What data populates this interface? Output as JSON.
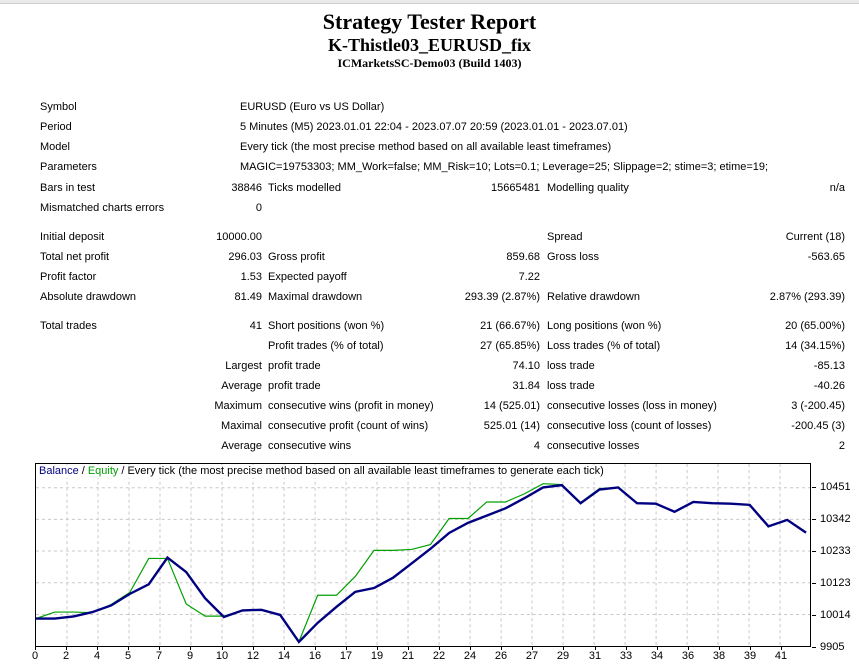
{
  "header": {
    "title": "Strategy Tester Report",
    "strategy": "K-Thistle03_EURUSD_fix",
    "server": "ICMarketsSC-Demo03 (Build 1403)"
  },
  "info": {
    "rows": [
      {
        "label": "Symbol",
        "value": "EURUSD (Euro vs US Dollar)"
      },
      {
        "label": "Period",
        "value": "5 Minutes (M5) 2023.01.01 22:04 - 2023.07.07 20:59 (2023.01.01 - 2023.07.01)"
      },
      {
        "label": "Model",
        "value": "Every tick (the most precise method based on all available least timeframes)"
      },
      {
        "label": "Parameters",
        "value": "MAGIC=19753303; MM_Work=false; MM_Risk=10; Lots=0.1; Leverage=25; Slippage=2; stime=3; etime=19;"
      }
    ]
  },
  "stats": {
    "sections": [
      {
        "rows": [
          [
            "Bars in test",
            "38846",
            "Ticks modelled",
            "15665481",
            "Modelling quality",
            "n/a"
          ],
          [
            "Mismatched charts errors",
            "0",
            "",
            "",
            "",
            ""
          ]
        ]
      },
      {
        "rows": [
          [
            "Initial deposit",
            "10000.00",
            "",
            "",
            "Spread",
            "Current (18)"
          ],
          [
            "Total net profit",
            "296.03",
            "Gross profit",
            "859.68",
            "Gross loss",
            "-563.65"
          ],
          [
            "Profit factor",
            "1.53",
            "Expected payoff",
            "7.22",
            "",
            ""
          ],
          [
            "Absolute drawdown",
            "81.49",
            "Maximal drawdown",
            "293.39 (2.87%)",
            "Relative drawdown",
            "2.87% (293.39)"
          ]
        ]
      },
      {
        "rows": [
          [
            "Total trades",
            "41",
            "Short positions (won %)",
            "21 (66.67%)",
            "Long positions (won %)",
            "20 (65.00%)"
          ],
          [
            "",
            "",
            "Profit trades (% of total)",
            "27 (65.85%)",
            "Loss trades (% of total)",
            "14 (34.15%)"
          ],
          [
            "",
            "Largest",
            "profit trade",
            "74.10",
            "loss trade",
            "-85.13"
          ],
          [
            "",
            "Average",
            "profit trade",
            "31.84",
            "loss trade",
            "-40.26"
          ],
          [
            "",
            "Maximum",
            "consecutive wins (profit in money)",
            "14 (525.01)",
            "consecutive losses (loss in money)",
            "3 (-200.45)"
          ],
          [
            "",
            "Maximal",
            "consecutive profit (count of wins)",
            "525.01 (14)",
            "consecutive loss (count of losses)",
            "-200.45 (3)"
          ],
          [
            "",
            "Average",
            "consecutive wins",
            "4",
            "consecutive losses",
            "2"
          ]
        ]
      }
    ]
  },
  "chart_data": {
    "type": "line",
    "title": "Balance / Equity / Every tick (the most precise method based on all available least timeframes to generate each tick)",
    "legend": {
      "balance_label": "Balance",
      "equity_label": "Equity",
      "sep": "/",
      "model_note": "Every tick (the most precise method based on all available least timeframes to generate each tick)"
    },
    "xlabel": "",
    "ylabel": "",
    "x": [
      0,
      1,
      2,
      3,
      4,
      5,
      6,
      7,
      8,
      9,
      10,
      11,
      12,
      13,
      14,
      15,
      16,
      17,
      18,
      19,
      20,
      21,
      22,
      23,
      24,
      25,
      26,
      27,
      28,
      29,
      30,
      31,
      32,
      33,
      34,
      35,
      36,
      37,
      38,
      39,
      40,
      41
    ],
    "series": [
      {
        "name": "Balance",
        "color": "#000080",
        "values": [
          10000,
          10000,
          10007,
          10022,
          10045,
          10085,
          10118,
          10210,
          10160,
          10070,
          10005,
          10028,
          10030,
          10012,
          9919,
          9985,
          10040,
          10092,
          10105,
          10140,
          10190,
          10240,
          10295,
          10330,
          10355,
          10380,
          10415,
          10452,
          10460,
          10398,
          10445,
          10452,
          10398,
          10396,
          10368,
          10402,
          10398,
          10396,
          10392,
          10318,
          10340,
          10296
        ]
      },
      {
        "name": "Equity",
        "color": "#00a000",
        "values": [
          10000,
          10022,
          10022,
          10020,
          10048,
          10090,
          10207,
          10207,
          10050,
          10008,
          10008,
          10028,
          10030,
          10012,
          9920,
          10080,
          10080,
          10145,
          10235,
          10235,
          10238,
          10255,
          10345,
          10345,
          10402,
          10402,
          10430,
          10465,
          10462,
          10400,
          10448,
          10452,
          10398,
          10396,
          10368,
          10402,
          10398,
          10396,
          10392,
          10318,
          10340,
          10296
        ]
      }
    ],
    "x_ticks": [
      0,
      2,
      4,
      5,
      7,
      9,
      10,
      12,
      14,
      16,
      17,
      19,
      21,
      22,
      24,
      26,
      27,
      29,
      31,
      33,
      34,
      36,
      38,
      39,
      41
    ],
    "y_ticks": [
      10451,
      10342,
      10233,
      10123,
      10014,
      9905
    ],
    "ylim": [
      9905,
      10533
    ],
    "xlim": [
      0,
      42.2
    ],
    "grid": true,
    "grid_color": "#c8c8c8",
    "legend_position": "top-left"
  }
}
